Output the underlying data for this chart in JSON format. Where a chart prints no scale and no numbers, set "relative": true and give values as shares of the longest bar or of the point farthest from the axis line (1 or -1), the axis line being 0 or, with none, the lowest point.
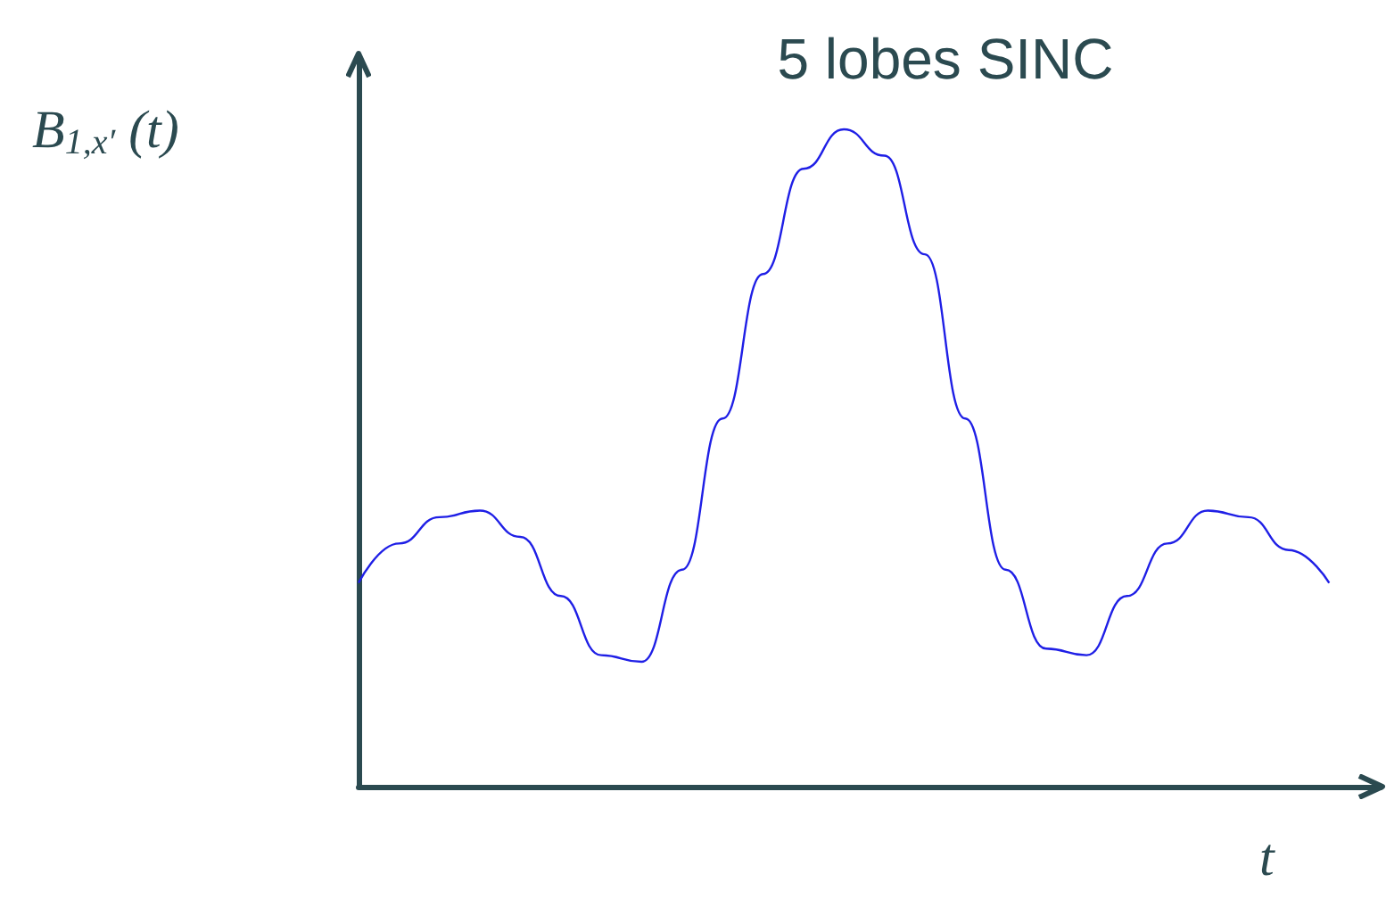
{
  "chart_data": {
    "type": "line",
    "title": "5 lobes SINC",
    "xlabel": "t",
    "ylabel": "B$_{1,x′}$ (t)",
    "relative": true,
    "color": "#1f1fe6",
    "categories": [
      null,
      null,
      null,
      null,
      null,
      null,
      null,
      null,
      null,
      null,
      null,
      null,
      null,
      null,
      null,
      null,
      null,
      null,
      null,
      null,
      null,
      null,
      null,
      null,
      null
    ],
    "values": [
      0.31,
      0.37,
      0.41,
      0.42,
      0.38,
      0.29,
      0.2,
      0.19,
      0.33,
      0.56,
      0.78,
      0.94,
      1.0,
      0.96,
      0.81,
      0.56,
      0.33,
      0.21,
      0.2,
      0.29,
      0.37,
      0.42,
      0.41,
      0.36,
      0.31
    ],
    "grid": false,
    "marker": "none",
    "line_style": "solid"
  }
}
